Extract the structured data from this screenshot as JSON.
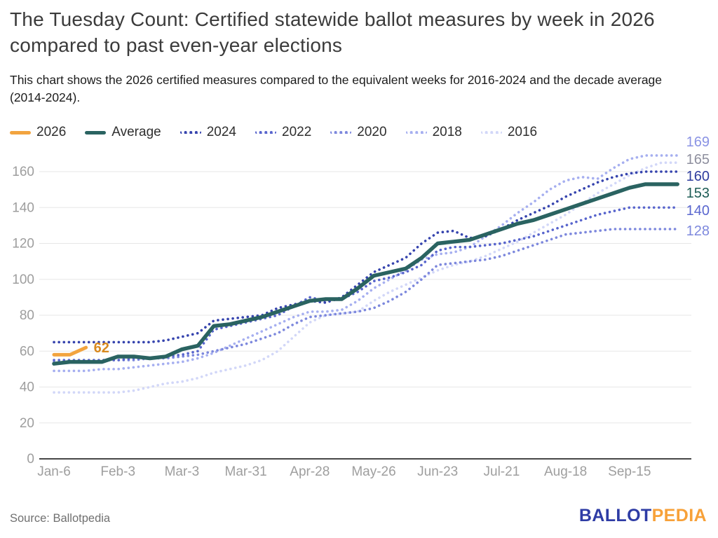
{
  "header": {
    "title": "The Tuesday Count: Certified statewide ballot measures by week in 2026 compared to past even-year elections",
    "subtitle": "This chart shows the 2026 certified measures compared to the equivalent weeks for 2016-2024 and the decade average (2014-2024)."
  },
  "legend": {
    "items": [
      {
        "label": "2026",
        "color": "#F2A43F",
        "style": "solid"
      },
      {
        "label": "Average",
        "color": "#2A6361",
        "style": "solid"
      },
      {
        "label": "2024",
        "color": "#3644AE",
        "style": "dotted"
      },
      {
        "label": "2022",
        "color": "#5865CD",
        "style": "dotted"
      },
      {
        "label": "2020",
        "color": "#7D88DD",
        "style": "dotted"
      },
      {
        "label": "2018",
        "color": "#A6AFF0",
        "style": "dotted"
      },
      {
        "label": "2016",
        "color": "#D2D7F8",
        "style": "dotted"
      }
    ]
  },
  "chart_data": {
    "type": "line",
    "title": "The Tuesday Count: Certified statewide ballot measures by week in 2026 compared to past even-year elections",
    "xlabel": "",
    "ylabel": "",
    "x_unit": "week starting (weekly points, Jan-6 = week 0)",
    "x_axis": {
      "tick_labels": [
        "Jan-6",
        "Feb-3",
        "Mar-3",
        "Mar-31",
        "Apr-28",
        "May-26",
        "Jun-23",
        "Jul-21",
        "Aug-18",
        "Sep-15"
      ],
      "tick_weeks": [
        0,
        4,
        8,
        12,
        16,
        20,
        24,
        28,
        32,
        36
      ]
    },
    "y_axis": {
      "ticks": [
        0,
        20,
        40,
        60,
        80,
        100,
        120,
        140,
        160
      ],
      "ylim": [
        0,
        176
      ],
      "grid": true,
      "tick_color": "#9E9E9E"
    },
    "legend_position": "top",
    "series": [
      {
        "name": "2026",
        "color": "#F2A43F",
        "style": "solid",
        "end_label": null,
        "values": [
          58,
          58,
          62
        ]
      },
      {
        "name": "Average",
        "color": "#2A6361",
        "style": "solid",
        "end_label": "153",
        "values": [
          53,
          54,
          54,
          54,
          57,
          57,
          56,
          57,
          61,
          63,
          74,
          75,
          77,
          79,
          82,
          85,
          88,
          89,
          89,
          95,
          102,
          104,
          106,
          112,
          120,
          121,
          122,
          125,
          128,
          131,
          133,
          136,
          139,
          142,
          145,
          148,
          151,
          153,
          153,
          153
        ]
      },
      {
        "name": "2024",
        "color": "#3644AE",
        "style": "dotted",
        "end_label": "160",
        "values": [
          65,
          65,
          65,
          65,
          65,
          65,
          65,
          66,
          68,
          70,
          77,
          78,
          79,
          80,
          84,
          86,
          88,
          87,
          90,
          97,
          104,
          108,
          112,
          120,
          126,
          127,
          123,
          124,
          128,
          133,
          137,
          141,
          146,
          150,
          154,
          157,
          159,
          160,
          160,
          160
        ]
      },
      {
        "name": "2022",
        "color": "#5865CD",
        "style": "dotted",
        "end_label": "140",
        "values": [
          55,
          55,
          55,
          55,
          55,
          56,
          56,
          57,
          58,
          60,
          72,
          74,
          76,
          78,
          80,
          85,
          90,
          88,
          89,
          93,
          99,
          101,
          104,
          108,
          116,
          118,
          118,
          119,
          120,
          122,
          124,
          127,
          130,
          133,
          136,
          138,
          140,
          140,
          140,
          140
        ]
      },
      {
        "name": "2020",
        "color": "#7D88DD",
        "style": "dotted",
        "end_label": "128",
        "values": [
          54,
          54,
          54,
          55,
          55,
          55,
          56,
          56,
          57,
          58,
          60,
          62,
          64,
          67,
          70,
          75,
          79,
          80,
          81,
          82,
          84,
          88,
          93,
          100,
          108,
          109,
          110,
          111,
          113,
          116,
          119,
          122,
          125,
          126,
          127,
          128,
          128,
          128,
          128,
          128
        ]
      },
      {
        "name": "2018",
        "color": "#A6AFF0",
        "style": "dotted",
        "end_label": "169",
        "values": [
          49,
          49,
          49,
          50,
          50,
          51,
          52,
          53,
          54,
          56,
          59,
          63,
          67,
          71,
          75,
          79,
          82,
          82,
          83,
          88,
          95,
          100,
          105,
          111,
          114,
          115,
          118,
          124,
          130,
          137,
          143,
          150,
          155,
          157,
          156,
          162,
          167,
          169,
          169,
          169
        ]
      },
      {
        "name": "2016",
        "color": "#D2D7F8",
        "style": "dotted",
        "end_label": "165",
        "values": [
          37,
          37,
          37,
          37,
          37,
          38,
          40,
          42,
          43,
          45,
          48,
          50,
          52,
          55,
          60,
          68,
          76,
          80,
          81,
          82,
          88,
          93,
          97,
          101,
          105,
          108,
          110,
          113,
          117,
          121,
          126,
          131,
          136,
          142,
          148,
          153,
          158,
          162,
          165,
          165
        ]
      }
    ],
    "annotation": {
      "text": "62",
      "series": "2026",
      "color": "#D8891F"
    },
    "end_labels": [
      {
        "text": "169",
        "color": "#8A93E4"
      },
      {
        "text": "165",
        "color": "#8E8F9E"
      },
      {
        "text": "160",
        "color": "#2E3C9E"
      },
      {
        "text": "153",
        "color": "#1D5C55"
      },
      {
        "text": "140",
        "color": "#5A67CF"
      },
      {
        "text": "128",
        "color": "#7D88DD"
      }
    ]
  },
  "footer": {
    "source": "Source: Ballotpedia",
    "logo": {
      "part1": "BALLOT",
      "part2": "PEDIA",
      "color1": "#2E3CA5",
      "color2": "#F7A139"
    }
  }
}
